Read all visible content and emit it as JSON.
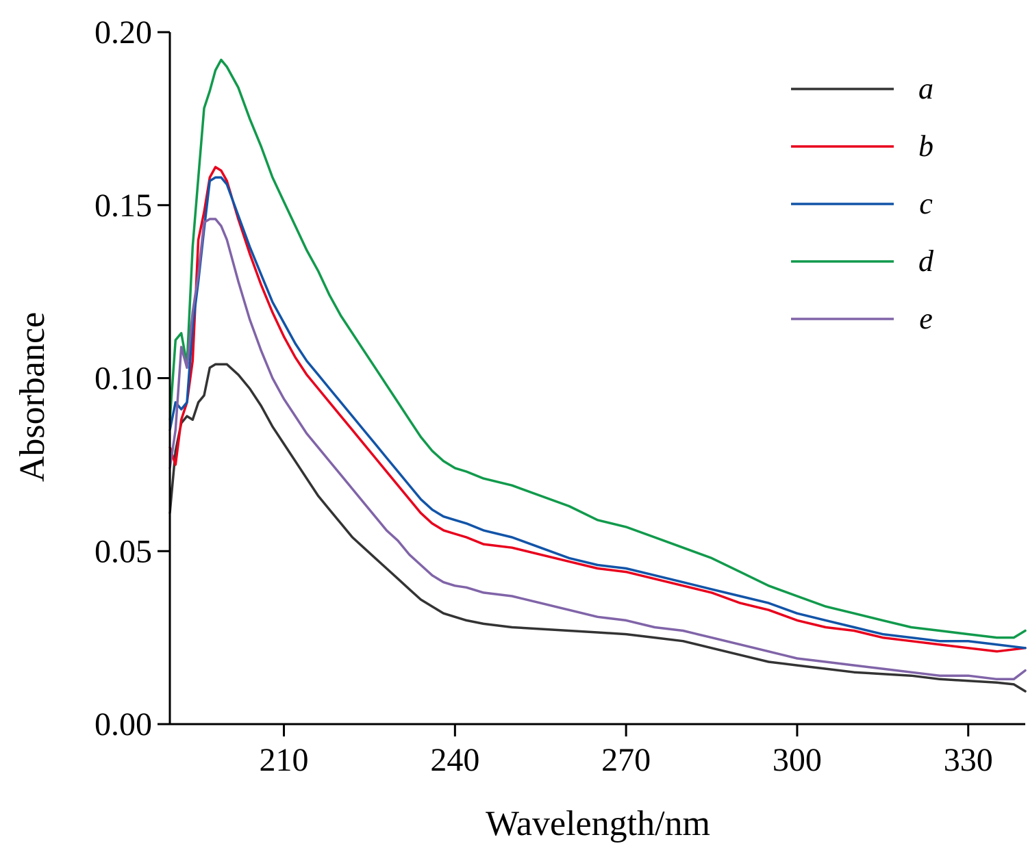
{
  "chart_data": {
    "type": "line",
    "title": "",
    "xlabel": "Wavelength/nm",
    "ylabel": "Absorbance",
    "xlim": [
      190,
      340
    ],
    "ylim": [
      0.0,
      0.2
    ],
    "xticks": [
      210,
      240,
      270,
      300,
      330
    ],
    "xtick_labels": [
      "210",
      "240",
      "270",
      "300",
      "330"
    ],
    "yticks": [
      0.0,
      0.05,
      0.1,
      0.15,
      0.2
    ],
    "ytick_labels": [
      "0.00",
      "0.05",
      "0.10",
      "0.15",
      "0.20"
    ],
    "grid": false,
    "legend_position": "top-right",
    "series": [
      {
        "name": "a",
        "color": "#333333",
        "points": [
          [
            190,
            0.061
          ],
          [
            191,
            0.079
          ],
          [
            192,
            0.087
          ],
          [
            193,
            0.089
          ],
          [
            194,
            0.088
          ],
          [
            195,
            0.093
          ],
          [
            196,
            0.095
          ],
          [
            197,
            0.103
          ],
          [
            198,
            0.104
          ],
          [
            199,
            0.104
          ],
          [
            200,
            0.104
          ],
          [
            202,
            0.101
          ],
          [
            204,
            0.097
          ],
          [
            206,
            0.092
          ],
          [
            208,
            0.086
          ],
          [
            210,
            0.081
          ],
          [
            212,
            0.076
          ],
          [
            214,
            0.071
          ],
          [
            216,
            0.066
          ],
          [
            218,
            0.062
          ],
          [
            220,
            0.058
          ],
          [
            222,
            0.054
          ],
          [
            224,
            0.051
          ],
          [
            226,
            0.048
          ],
          [
            228,
            0.045
          ],
          [
            230,
            0.042
          ],
          [
            232,
            0.039
          ],
          [
            234,
            0.036
          ],
          [
            236,
            0.034
          ],
          [
            238,
            0.032
          ],
          [
            240,
            0.031
          ],
          [
            242,
            0.03
          ],
          [
            245,
            0.029
          ],
          [
            250,
            0.028
          ],
          [
            255,
            0.0275
          ],
          [
            260,
            0.027
          ],
          [
            265,
            0.0265
          ],
          [
            270,
            0.026
          ],
          [
            275,
            0.025
          ],
          [
            280,
            0.024
          ],
          [
            285,
            0.022
          ],
          [
            290,
            0.02
          ],
          [
            295,
            0.018
          ],
          [
            300,
            0.017
          ],
          [
            305,
            0.016
          ],
          [
            310,
            0.015
          ],
          [
            315,
            0.0145
          ],
          [
            320,
            0.014
          ],
          [
            325,
            0.013
          ],
          [
            330,
            0.0125
          ],
          [
            335,
            0.012
          ],
          [
            338,
            0.0115
          ],
          [
            340,
            0.0095
          ]
        ]
      },
      {
        "name": "b",
        "color": "#e8001c",
        "points": [
          [
            190,
            0.08
          ],
          [
            191,
            0.075
          ],
          [
            192,
            0.088
          ],
          [
            193,
            0.093
          ],
          [
            194,
            0.105
          ],
          [
            195,
            0.14
          ],
          [
            196,
            0.148
          ],
          [
            197,
            0.158
          ],
          [
            198,
            0.161
          ],
          [
            199,
            0.16
          ],
          [
            200,
            0.157
          ],
          [
            202,
            0.146
          ],
          [
            204,
            0.136
          ],
          [
            206,
            0.127
          ],
          [
            208,
            0.119
          ],
          [
            210,
            0.112
          ],
          [
            212,
            0.106
          ],
          [
            214,
            0.101
          ],
          [
            216,
            0.097
          ],
          [
            218,
            0.093
          ],
          [
            220,
            0.089
          ],
          [
            222,
            0.085
          ],
          [
            224,
            0.081
          ],
          [
            226,
            0.077
          ],
          [
            228,
            0.073
          ],
          [
            230,
            0.069
          ],
          [
            232,
            0.065
          ],
          [
            234,
            0.061
          ],
          [
            236,
            0.058
          ],
          [
            238,
            0.056
          ],
          [
            240,
            0.055
          ],
          [
            242,
            0.054
          ],
          [
            245,
            0.052
          ],
          [
            250,
            0.051
          ],
          [
            255,
            0.049
          ],
          [
            260,
            0.047
          ],
          [
            265,
            0.045
          ],
          [
            270,
            0.044
          ],
          [
            275,
            0.042
          ],
          [
            280,
            0.04
          ],
          [
            285,
            0.038
          ],
          [
            290,
            0.035
          ],
          [
            295,
            0.033
          ],
          [
            300,
            0.03
          ],
          [
            305,
            0.028
          ],
          [
            310,
            0.027
          ],
          [
            315,
            0.025
          ],
          [
            320,
            0.024
          ],
          [
            325,
            0.023
          ],
          [
            330,
            0.022
          ],
          [
            335,
            0.021
          ],
          [
            340,
            0.022
          ]
        ]
      },
      {
        "name": "c",
        "color": "#1254a8",
        "points": [
          [
            190,
            0.085
          ],
          [
            191,
            0.093
          ],
          [
            192,
            0.091
          ],
          [
            193,
            0.093
          ],
          [
            194,
            0.115
          ],
          [
            195,
            0.128
          ],
          [
            196,
            0.143
          ],
          [
            197,
            0.157
          ],
          [
            198,
            0.158
          ],
          [
            199,
            0.158
          ],
          [
            200,
            0.156
          ],
          [
            202,
            0.147
          ],
          [
            204,
            0.138
          ],
          [
            206,
            0.13
          ],
          [
            208,
            0.122
          ],
          [
            210,
            0.116
          ],
          [
            212,
            0.11
          ],
          [
            214,
            0.105
          ],
          [
            216,
            0.101
          ],
          [
            218,
            0.097
          ],
          [
            220,
            0.093
          ],
          [
            222,
            0.089
          ],
          [
            224,
            0.085
          ],
          [
            226,
            0.081
          ],
          [
            228,
            0.077
          ],
          [
            230,
            0.073
          ],
          [
            232,
            0.069
          ],
          [
            234,
            0.065
          ],
          [
            236,
            0.062
          ],
          [
            238,
            0.06
          ],
          [
            240,
            0.059
          ],
          [
            242,
            0.058
          ],
          [
            245,
            0.056
          ],
          [
            250,
            0.054
          ],
          [
            255,
            0.051
          ],
          [
            260,
            0.048
          ],
          [
            265,
            0.046
          ],
          [
            270,
            0.045
          ],
          [
            275,
            0.043
          ],
          [
            280,
            0.041
          ],
          [
            285,
            0.039
          ],
          [
            290,
            0.037
          ],
          [
            295,
            0.035
          ],
          [
            300,
            0.032
          ],
          [
            305,
            0.03
          ],
          [
            310,
            0.028
          ],
          [
            315,
            0.026
          ],
          [
            320,
            0.025
          ],
          [
            325,
            0.024
          ],
          [
            330,
            0.024
          ],
          [
            335,
            0.023
          ],
          [
            340,
            0.022
          ]
        ]
      },
      {
        "name": "d",
        "color": "#119a4c",
        "points": [
          [
            190,
            0.088
          ],
          [
            191,
            0.111
          ],
          [
            192,
            0.113
          ],
          [
            193,
            0.104
          ],
          [
            194,
            0.138
          ],
          [
            195,
            0.158
          ],
          [
            196,
            0.178
          ],
          [
            197,
            0.183
          ],
          [
            198,
            0.189
          ],
          [
            199,
            0.192
          ],
          [
            200,
            0.19
          ],
          [
            202,
            0.184
          ],
          [
            204,
            0.175
          ],
          [
            206,
            0.167
          ],
          [
            208,
            0.158
          ],
          [
            210,
            0.151
          ],
          [
            212,
            0.144
          ],
          [
            214,
            0.137
          ],
          [
            216,
            0.131
          ],
          [
            218,
            0.124
          ],
          [
            220,
            0.118
          ],
          [
            222,
            0.113
          ],
          [
            224,
            0.108
          ],
          [
            226,
            0.103
          ],
          [
            228,
            0.098
          ],
          [
            230,
            0.093
          ],
          [
            232,
            0.088
          ],
          [
            234,
            0.083
          ],
          [
            236,
            0.079
          ],
          [
            238,
            0.076
          ],
          [
            240,
            0.074
          ],
          [
            242,
            0.073
          ],
          [
            245,
            0.071
          ],
          [
            250,
            0.069
          ],
          [
            255,
            0.066
          ],
          [
            260,
            0.063
          ],
          [
            265,
            0.059
          ],
          [
            270,
            0.057
          ],
          [
            275,
            0.054
          ],
          [
            280,
            0.051
          ],
          [
            285,
            0.048
          ],
          [
            290,
            0.044
          ],
          [
            295,
            0.04
          ],
          [
            300,
            0.037
          ],
          [
            305,
            0.034
          ],
          [
            310,
            0.032
          ],
          [
            315,
            0.03
          ],
          [
            320,
            0.028
          ],
          [
            325,
            0.027
          ],
          [
            330,
            0.026
          ],
          [
            335,
            0.025
          ],
          [
            338,
            0.025
          ],
          [
            340,
            0.027
          ]
        ]
      },
      {
        "name": "e",
        "color": "#8064a8",
        "points": [
          [
            190,
            0.074
          ],
          [
            191,
            0.085
          ],
          [
            192,
            0.109
          ],
          [
            193,
            0.103
          ],
          [
            194,
            0.119
          ],
          [
            195,
            0.13
          ],
          [
            196,
            0.145
          ],
          [
            197,
            0.146
          ],
          [
            198,
            0.146
          ],
          [
            199,
            0.144
          ],
          [
            200,
            0.14
          ],
          [
            202,
            0.128
          ],
          [
            204,
            0.117
          ],
          [
            206,
            0.108
          ],
          [
            208,
            0.1
          ],
          [
            210,
            0.094
          ],
          [
            212,
            0.089
          ],
          [
            214,
            0.084
          ],
          [
            216,
            0.08
          ],
          [
            218,
            0.076
          ],
          [
            220,
            0.072
          ],
          [
            222,
            0.068
          ],
          [
            224,
            0.064
          ],
          [
            226,
            0.06
          ],
          [
            228,
            0.056
          ],
          [
            230,
            0.053
          ],
          [
            232,
            0.049
          ],
          [
            234,
            0.046
          ],
          [
            236,
            0.043
          ],
          [
            238,
            0.041
          ],
          [
            240,
            0.04
          ],
          [
            242,
            0.0395
          ],
          [
            245,
            0.038
          ],
          [
            250,
            0.037
          ],
          [
            255,
            0.035
          ],
          [
            260,
            0.033
          ],
          [
            265,
            0.031
          ],
          [
            270,
            0.03
          ],
          [
            275,
            0.028
          ],
          [
            280,
            0.027
          ],
          [
            285,
            0.025
          ],
          [
            290,
            0.023
          ],
          [
            295,
            0.021
          ],
          [
            300,
            0.019
          ],
          [
            305,
            0.018
          ],
          [
            310,
            0.017
          ],
          [
            315,
            0.016
          ],
          [
            320,
            0.015
          ],
          [
            325,
            0.014
          ],
          [
            330,
            0.014
          ],
          [
            335,
            0.013
          ],
          [
            338,
            0.013
          ],
          [
            340,
            0.0155
          ]
        ]
      }
    ]
  }
}
